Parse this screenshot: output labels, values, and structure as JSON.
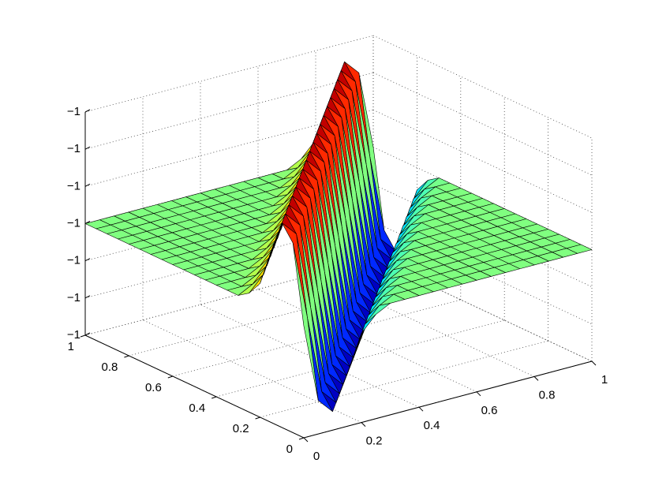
{
  "chart_data": {
    "type": "surface",
    "x": [
      0,
      0.05,
      0.1,
      0.15,
      0.2,
      0.25,
      0.3,
      0.35,
      0.4,
      0.45,
      0.5,
      0.55,
      0.6,
      0.65,
      0.7,
      0.75,
      0.8,
      0.85,
      0.9,
      0.95,
      1
    ],
    "y": [
      0,
      0.05,
      0.1,
      0.15,
      0.2,
      0.25,
      0.3,
      0.35,
      0.4,
      0.45,
      0.5,
      0.55,
      0.6,
      0.65,
      0.7,
      0.75,
      0.8,
      0.85,
      0.9,
      0.95,
      1
    ],
    "z": [
      [
        -1,
        -1.21,
        -1.25,
        -1.16,
        -1.06,
        -1.02,
        -1,
        -1,
        -1,
        -1,
        -1,
        -1,
        -1,
        -1,
        -1,
        -1,
        -1,
        -1,
        -1,
        -1,
        -1
      ],
      [
        -0.79,
        -1,
        -1.21,
        -1.25,
        -1.16,
        -1.06,
        -1.02,
        -1,
        -1,
        -1,
        -1,
        -1,
        -1,
        -1,
        -1,
        -1,
        -1,
        -1,
        -1,
        -1,
        -1
      ],
      [
        -0.75,
        -0.79,
        -1,
        -1.21,
        -1.25,
        -1.16,
        -1.06,
        -1.02,
        -1,
        -1,
        -1,
        -1,
        -1,
        -1,
        -1,
        -1,
        -1,
        -1,
        -1,
        -1,
        -1
      ],
      [
        -0.84,
        -0.75,
        -0.79,
        -1,
        -1.21,
        -1.25,
        -1.16,
        -1.06,
        -1.02,
        -1,
        -1,
        -1,
        -1,
        -1,
        -1,
        -1,
        -1,
        -1,
        -1,
        -1,
        -1
      ],
      [
        -0.94,
        -0.84,
        -0.75,
        -0.79,
        -1,
        -1.21,
        -1.25,
        -1.16,
        -1.06,
        -1.02,
        -1,
        -1,
        -1,
        -1,
        -1,
        -1,
        -1,
        -1,
        -1,
        -1,
        -1
      ],
      [
        -0.98,
        -0.94,
        -0.84,
        -0.75,
        -0.79,
        -1,
        -1.21,
        -1.25,
        -1.16,
        -1.06,
        -1.02,
        -1,
        -1,
        -1,
        -1,
        -1,
        -1,
        -1,
        -1,
        -1,
        -1
      ],
      [
        -1,
        -0.98,
        -0.94,
        -0.84,
        -0.75,
        -0.79,
        -1,
        -1.21,
        -1.25,
        -1.16,
        -1.06,
        -1.02,
        -1,
        -1,
        -1,
        -1,
        -1,
        -1,
        -1,
        -1,
        -1
      ],
      [
        -1,
        -1,
        -0.98,
        -0.94,
        -0.84,
        -0.75,
        -0.79,
        -1,
        -1.21,
        -1.25,
        -1.16,
        -1.06,
        -1.02,
        -1,
        -1,
        -1,
        -1,
        -1,
        -1,
        -1,
        -1
      ],
      [
        -1,
        -1,
        -1,
        -0.98,
        -0.94,
        -0.84,
        -0.75,
        -0.79,
        -1,
        -1.21,
        -1.25,
        -1.16,
        -1.06,
        -1.02,
        -1,
        -1,
        -1,
        -1,
        -1,
        -1,
        -1
      ],
      [
        -1,
        -1,
        -1,
        -1,
        -0.98,
        -0.94,
        -0.84,
        -0.75,
        -0.79,
        -1,
        -1.21,
        -1.25,
        -1.16,
        -1.06,
        -1.02,
        -1,
        -1,
        -1,
        -1,
        -1,
        -1
      ],
      [
        -1,
        -1,
        -1,
        -1,
        -1,
        -0.98,
        -0.94,
        -0.84,
        -0.75,
        -0.79,
        -1,
        -1.21,
        -1.25,
        -1.16,
        -1.06,
        -1.02,
        -1,
        -1,
        -1,
        -1,
        -1
      ],
      [
        -1,
        -1,
        -1,
        -1,
        -1,
        -1,
        -0.98,
        -0.94,
        -0.84,
        -0.75,
        -0.79,
        -1,
        -1.21,
        -1.25,
        -1.16,
        -1.06,
        -1.02,
        -1,
        -1,
        -1,
        -1
      ],
      [
        -1,
        -1,
        -1,
        -1,
        -1,
        -1,
        -1,
        -0.98,
        -0.94,
        -0.84,
        -0.75,
        -0.79,
        -1,
        -1.21,
        -1.25,
        -1.16,
        -1.06,
        -1.02,
        -1,
        -1,
        -1
      ],
      [
        -1,
        -1,
        -1,
        -1,
        -1,
        -1,
        -1,
        -1,
        -0.98,
        -0.94,
        -0.84,
        -0.75,
        -0.79,
        -1,
        -1.21,
        -1.25,
        -1.16,
        -1.06,
        -1.02,
        -1,
        -1
      ],
      [
        -1,
        -1,
        -1,
        -1,
        -1,
        -1,
        -1,
        -1,
        -1,
        -0.98,
        -0.94,
        -0.84,
        -0.75,
        -0.79,
        -1,
        -1.21,
        -1.25,
        -1.16,
        -1.06,
        -1.02,
        -1
      ],
      [
        -1,
        -1,
        -1,
        -1,
        -1,
        -1,
        -1,
        -1,
        -1,
        -1,
        -0.98,
        -0.94,
        -0.84,
        -0.75,
        -0.79,
        -1,
        -1.21,
        -1.25,
        -1.16,
        -1.06,
        -1.02
      ],
      [
        -1,
        -1,
        -1,
        -1,
        -1,
        -1,
        -1,
        -1,
        -1,
        -1,
        -1,
        -0.98,
        -0.94,
        -0.84,
        -0.75,
        -0.79,
        -1,
        -1.21,
        -1.25,
        -1.16,
        -1.06
      ],
      [
        -1,
        -1,
        -1,
        -1,
        -1,
        -1,
        -1,
        -1,
        -1,
        -1,
        -1,
        -1,
        -0.98,
        -0.94,
        -0.84,
        -0.75,
        -0.79,
        -1,
        -1.21,
        -1.25,
        -1.16
      ],
      [
        -1,
        -1,
        -1,
        -1,
        -1,
        -1,
        -1,
        -1,
        -1,
        -1,
        -1,
        -1,
        -1,
        -0.98,
        -0.94,
        -0.84,
        -0.75,
        -0.79,
        -1,
        -1.21,
        -1.25
      ],
      [
        -1,
        -1,
        -1,
        -1,
        -1,
        -1,
        -1,
        -1,
        -1,
        -1,
        -1,
        -1,
        -1,
        -1,
        -0.98,
        -0.94,
        -0.84,
        -0.75,
        -0.79,
        -1,
        -1.21
      ],
      [
        -1,
        -1,
        -1,
        -1,
        -1,
        -1,
        -1,
        -1,
        -1,
        -1,
        -1,
        -1,
        -1,
        -1,
        -1,
        -0.98,
        -0.94,
        -0.84,
        -0.75,
        -0.79,
        -1
      ]
    ],
    "xlim": [
      0,
      1
    ],
    "ylim": [
      0,
      1
    ],
    "zlim": [
      -1.3,
      -0.7
    ],
    "xticks": [
      0,
      0.2,
      0.4,
      0.6,
      0.8,
      1
    ],
    "yticks": [
      0,
      0.2,
      0.4,
      0.6,
      0.8,
      1
    ],
    "zticks": [
      {
        "value": -1.3,
        "label": "−1"
      },
      {
        "value": -1.2,
        "label": "−1"
      },
      {
        "value": -1.1,
        "label": "−1"
      },
      {
        "value": -1,
        "label": "−1"
      },
      {
        "value": -0.9,
        "label": "−1"
      },
      {
        "value": -0.8,
        "label": "−1"
      },
      {
        "value": -0.7,
        "label": "−1"
      }
    ],
    "grid": true,
    "colormap": "jet",
    "edge_color": "#000000"
  }
}
